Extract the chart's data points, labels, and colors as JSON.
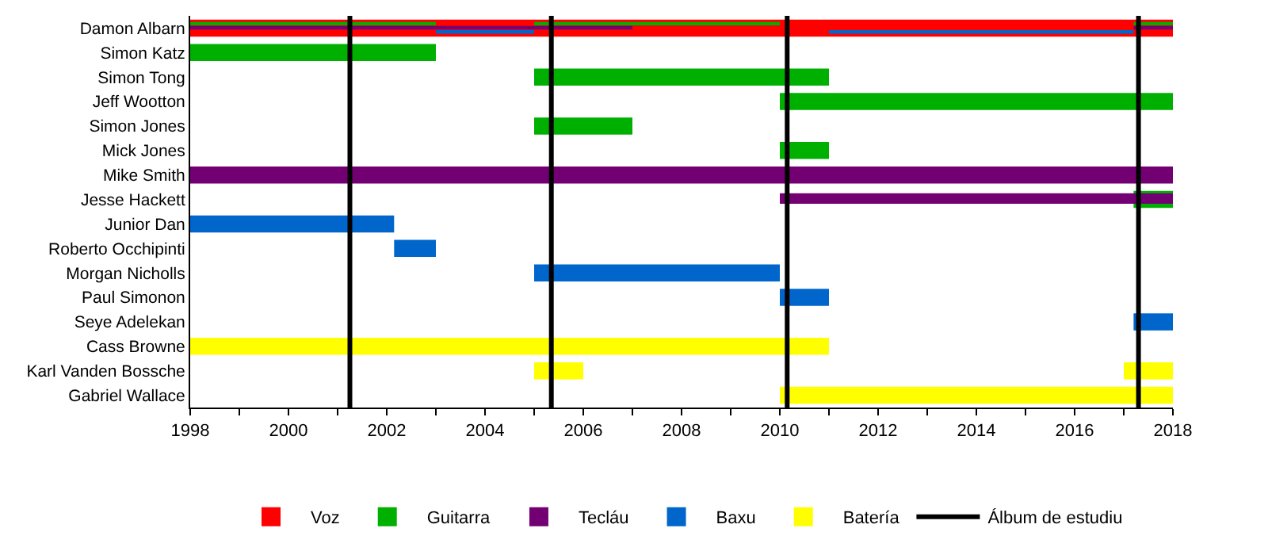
{
  "chart_data": {
    "type": "bar",
    "orientation": "horizontal",
    "categories": [
      "Damon Albarn",
      "Simon Katz",
      "Simon Tong",
      "Jeff Wootton",
      "Simon Jones",
      "Mick Jones",
      "Mike Smith",
      "Jesse Hackett",
      "Junior Dan",
      "Roberto Occhipinti",
      "Morgan Nicholls",
      "Paul Simonon",
      "Seye Adelekan",
      "Cass Browne",
      "Karl Vanden Bossche",
      "Gabriel Wallace"
    ],
    "series": [
      {
        "name": "Voz",
        "color": "#ff0000",
        "values": [
          20,
          null,
          null,
          null,
          null,
          null,
          null,
          null,
          null,
          null,
          null,
          null,
          null,
          null,
          null,
          null
        ],
        "base": [
          1998,
          null,
          null,
          null,
          null,
          null,
          null,
          null,
          null,
          null,
          null,
          null,
          null,
          null,
          null,
          null
        ]
      },
      {
        "name": "Guitarra",
        "color": "#00b000",
        "values": [
          5,
          5,
          6,
          8,
          2,
          1,
          null,
          0.8,
          null,
          null,
          null,
          null,
          null,
          null,
          null,
          null
        ],
        "base": [
          1998,
          1998,
          2005,
          2010,
          2005,
          2010,
          null,
          2017.2,
          null,
          null,
          null,
          null,
          null,
          null,
          null,
          null
        ]
      },
      {
        "color": "#00b000",
        "values": [
          5,
          null,
          null,
          null,
          null,
          null,
          null,
          null,
          null,
          null,
          null,
          null,
          null,
          null,
          null,
          null
        ],
        "base": [
          2005,
          null,
          null,
          null,
          null,
          null,
          null,
          null,
          null,
          null,
          null,
          null,
          null,
          null,
          null,
          null
        ]
      },
      {
        "color": "#00b000",
        "values": [
          0.8,
          null,
          null,
          null,
          null,
          null,
          null,
          null,
          null,
          null,
          null,
          null,
          null,
          null,
          null,
          null
        ],
        "base": [
          2017.2,
          null,
          null,
          null,
          null,
          null,
          null,
          null,
          null,
          null,
          null,
          null,
          null,
          null,
          null,
          null
        ]
      },
      {
        "name": "Tecláu",
        "color": "#730073",
        "values": [
          9,
          null,
          null,
          null,
          null,
          null,
          20,
          8,
          null,
          null,
          null,
          null,
          null,
          null,
          null,
          null
        ],
        "base": [
          1998,
          null,
          null,
          null,
          null,
          null,
          1998,
          2010,
          null,
          null,
          null,
          null,
          null,
          null,
          null,
          null
        ]
      },
      {
        "color": "#730073",
        "values": [
          0.8,
          null,
          null,
          null,
          null,
          null,
          null,
          null,
          null,
          null,
          null,
          null,
          null,
          null,
          null,
          null
        ],
        "base": [
          2017.2,
          null,
          null,
          null,
          null,
          null,
          null,
          null,
          null,
          null,
          null,
          null,
          null,
          null,
          null,
          null
        ]
      },
      {
        "name": "Baxu",
        "color": "#0066cc",
        "values": [
          2,
          null,
          null,
          null,
          null,
          null,
          null,
          null,
          4.15,
          0.85,
          5,
          1,
          0.8,
          null,
          null,
          null
        ],
        "base": [
          2003,
          null,
          null,
          null,
          null,
          null,
          null,
          null,
          1998,
          2002.15,
          2005,
          2010,
          2017.2,
          null,
          null,
          null
        ]
      },
      {
        "color": "#0066cc",
        "values": [
          6.2,
          null,
          null,
          null,
          null,
          null,
          null,
          null,
          null,
          null,
          null,
          null,
          null,
          null,
          null,
          null
        ],
        "base": [
          2011,
          null,
          null,
          null,
          null,
          null,
          null,
          null,
          null,
          null,
          null,
          null,
          null,
          null,
          null,
          null
        ]
      },
      {
        "name": "Batería",
        "color": "#ffff00",
        "values": [
          null,
          null,
          null,
          null,
          null,
          null,
          null,
          null,
          null,
          null,
          null,
          null,
          null,
          13,
          1,
          8
        ],
        "base": [
          null,
          null,
          null,
          null,
          null,
          null,
          null,
          null,
          null,
          null,
          null,
          null,
          null,
          1998,
          2005,
          2010
        ]
      },
      {
        "color": "#ffff00",
        "values": [
          null,
          null,
          null,
          null,
          null,
          null,
          null,
          null,
          null,
          null,
          null,
          null,
          null,
          null,
          1,
          null
        ],
        "base": [
          null,
          null,
          null,
          null,
          null,
          null,
          null,
          null,
          null,
          null,
          null,
          null,
          null,
          null,
          2017,
          null
        ]
      }
    ],
    "ref_lines": [
      {
        "axis": "x",
        "value": 2001.25,
        "label": "Álbum de estudiu",
        "color": "#000000"
      },
      {
        "axis": "x",
        "value": 2005.35,
        "color": "#000000"
      },
      {
        "axis": "x",
        "value": 2010.15,
        "color": "#000000"
      },
      {
        "axis": "x",
        "value": 2017.3,
        "color": "#000000"
      }
    ],
    "xlim": [
      1998,
      2018
    ],
    "xticks": [
      1998,
      {
        "value": 1999,
        "label": null
      },
      2000,
      {
        "value": 2001,
        "label": null
      },
      2002,
      {
        "value": 2003,
        "label": null
      },
      2004,
      {
        "value": 2005,
        "label": null
      },
      2006,
      {
        "value": 2007,
        "label": null
      },
      2008,
      {
        "value": 2009,
        "label": null
      },
      2010,
      {
        "value": 2011,
        "label": null
      },
      2012,
      {
        "value": 2013,
        "label": null
      },
      2014,
      {
        "value": 2015,
        "label": null
      },
      2016,
      {
        "value": 2017,
        "label": null
      },
      2018
    ],
    "legend": "bottom"
  }
}
